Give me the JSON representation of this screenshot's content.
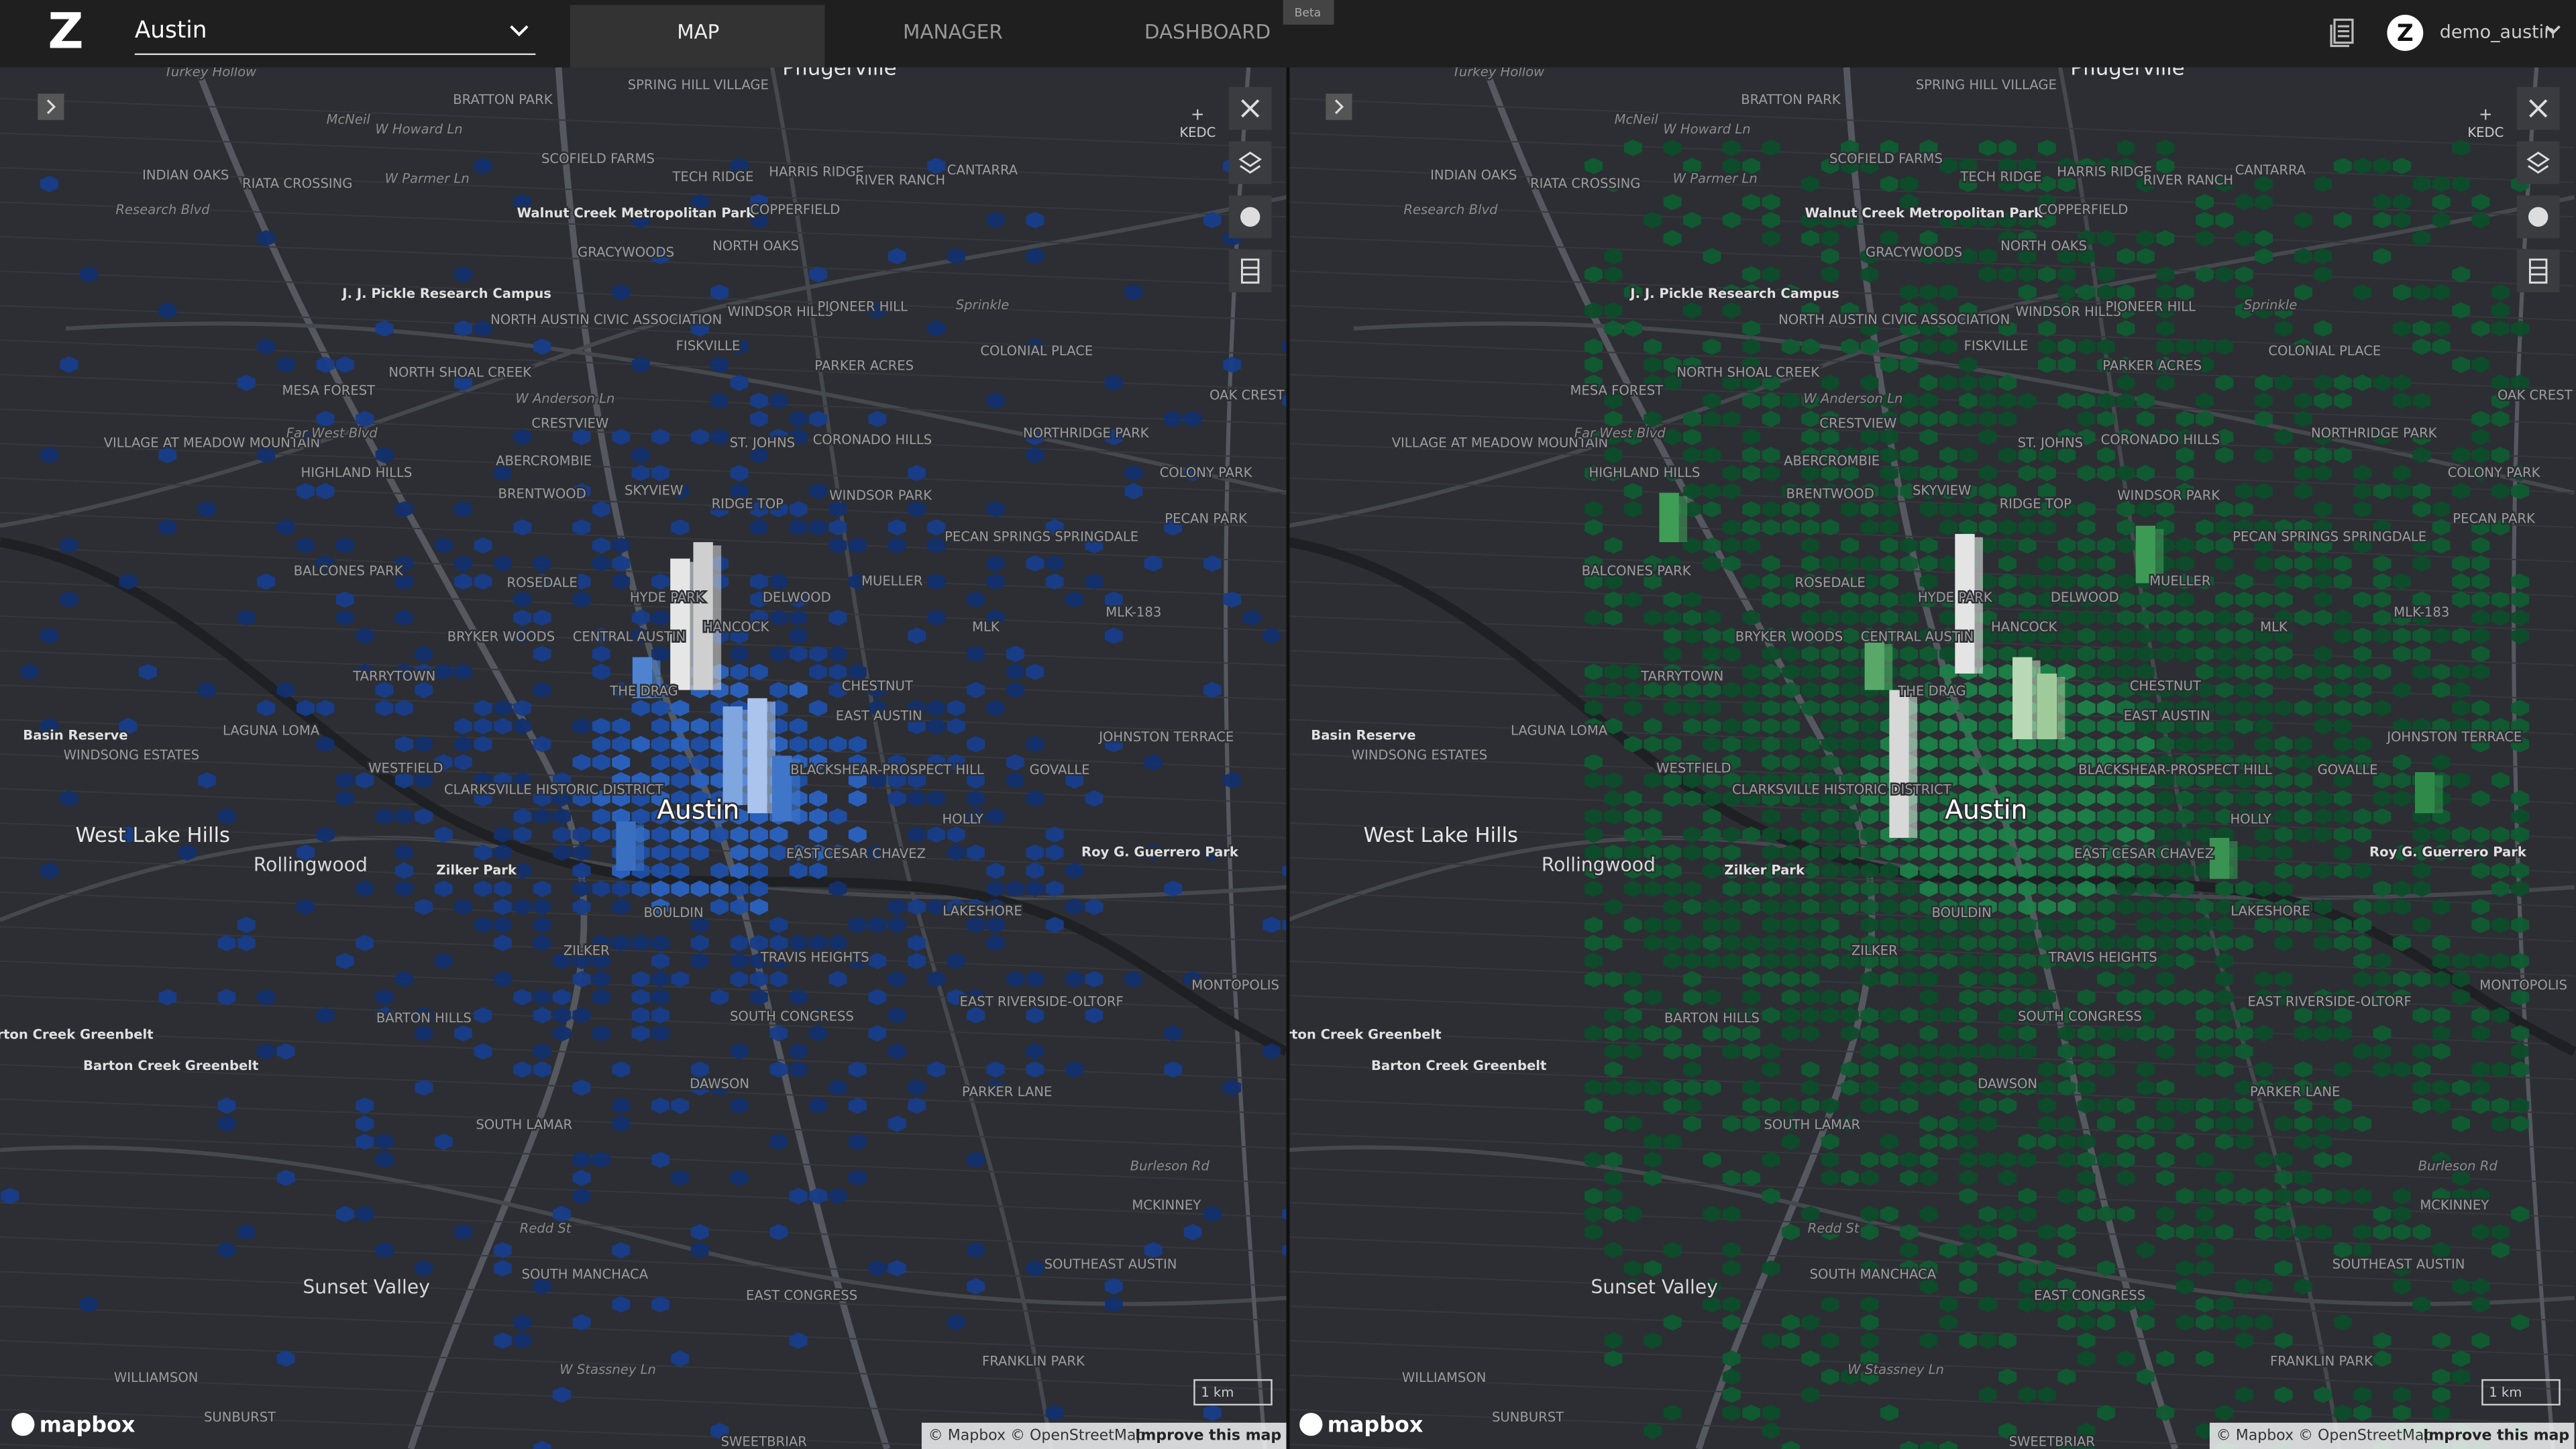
{
  "header": {
    "logo": "Z",
    "city": "Austin",
    "tabs": [
      "MAP",
      "MANAGER",
      "DASHBOARD"
    ],
    "badge": "Beta",
    "user": "demo_austin"
  },
  "map": {
    "kedc": "KEDC",
    "scale": "1 km",
    "logo": "mapbox",
    "attribution": "© Mapbox © OpenStreetMap",
    "improve": "Improve this map",
    "labels": [
      "Turkey Hollow",
      "McNeil",
      "W Howard Ln",
      "BRATTON PARK",
      "SPRING HILL VILLAGE",
      "Pflugerville",
      "INDIAN OAKS",
      "RIATA CROSSING",
      "W Parmer Ln",
      "SCOFIELD FARMS",
      "TECH RIDGE",
      "HARRIS RIDGE",
      "RIVER RANCH",
      "CANTARRA",
      "Walnut Creek Metropolitan Park",
      "COPPERFIELD",
      "Research Blvd",
      "GRACYWOODS",
      "NORTH OAKS",
      "J. J. Pickle Research Campus",
      "NORTH AUSTIN CIVIC ASSOCIATION",
      "WINDSOR HILLS",
      "PIONEER HILL",
      "Sprinkle",
      "FISKVILLE",
      "COLONIAL PLACE",
      "MESA FOREST",
      "NORTH SHOAL CREEK",
      "PARKER ACRES",
      "OAK CREST",
      "W Anderson Ln",
      "CRESTVIEW",
      "ST. JOHNS",
      "CORONADO HILLS",
      "NORTHRIDGE PARK",
      "VILLAGE AT MEADOW MOUNTAIN",
      "Far West Blvd",
      "HIGHLAND HILLS",
      "ABERCROMBIE",
      "COLONY PARK",
      "BRENTWOOD",
      "SKYVIEW",
      "RIDGE TOP",
      "WINDSOR PARK",
      "PECAN SPRINGS SPRINGDALE",
      "PECAN PARK",
      "BALCONES PARK",
      "ROSEDALE",
      "HYDE PARK",
      "DELWOOD",
      "MUELLER",
      "MLK-183",
      "BRYKER WOODS",
      "CENTRAL AUSTIN",
      "HANCOCK",
      "MLK",
      "TARRYTOWN",
      "THE DRAG",
      "CHESTNUT",
      "EAST AUSTIN",
      "Basin Reserve",
      "WINDSONG ESTATES",
      "LAGUNA LOMA",
      "JOHNSTON TERRACE",
      "WESTFIELD",
      "CLARKSVILLE HISTORIC DISTRICT",
      "BLACKSHEAR-PROSPECT HILL",
      "GOVALLE",
      "Austin",
      "HOLLY",
      "West Lake Hills",
      "Rollingwood",
      "Zilker Park",
      "EAST CESAR CHAVEZ",
      "Roy G. Guerrero Park",
      "BOULDIN",
      "LAKESHORE",
      "ZILKER",
      "TRAVIS HEIGHTS",
      "MONTOPOLIS",
      "BARTON HILLS",
      "EAST RIVERSIDE-OLTORF",
      "SOUTH CONGRESS",
      "Barton Creek Greenbelt",
      "Barton Creek Greenbelt",
      "DAWSON",
      "PARKER LANE",
      "SOUTH LAMAR",
      "Burleson Rd",
      "MCKINNEY",
      "Redd St",
      "SOUTH MANCHACA",
      "SOUTHEAST AUSTIN",
      "Sunset Valley",
      "EAST CONGRESS",
      "WILLIAMSON",
      "FRANKLIN PARK",
      "W Stassney Ln",
      "SUNBURST",
      "SWEETBRIAR"
    ]
  }
}
